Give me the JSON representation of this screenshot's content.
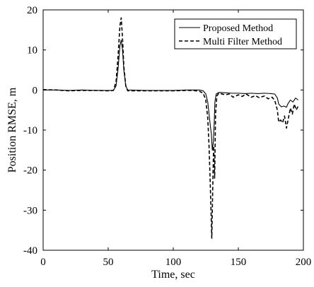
{
  "chart_data": {
    "type": "line",
    "title": "",
    "xlabel": "Time,   sec",
    "ylabel": "Position RMSE,   m",
    "xlim": [
      0,
      200
    ],
    "ylim": [
      -40,
      20
    ],
    "xticks": [
      0,
      50,
      100,
      150,
      200
    ],
    "yticks": [
      20,
      10,
      0,
      -10,
      -20,
      -30,
      -40
    ],
    "grid": false,
    "legend_position": "top-right",
    "series": [
      {
        "name": "Proposed Method",
        "color": "#000000",
        "style": "solid",
        "points": [
          [
            0,
            0
          ],
          [
            10,
            0
          ],
          [
            20,
            -0.1
          ],
          [
            30,
            0
          ],
          [
            40,
            -0.1
          ],
          [
            50,
            -0.1
          ],
          [
            54,
            -0.1
          ],
          [
            56,
            1.0
          ],
          [
            57.5,
            5.0
          ],
          [
            59,
            11.0
          ],
          [
            60,
            12.5
          ],
          [
            61,
            10.0
          ],
          [
            62,
            5.0
          ],
          [
            63.5,
            1.0
          ],
          [
            65,
            0
          ],
          [
            80,
            -0.1
          ],
          [
            100,
            -0.1
          ],
          [
            110,
            0
          ],
          [
            115,
            0
          ],
          [
            120,
            0
          ],
          [
            123,
            -0.2
          ],
          [
            125,
            -1.0
          ],
          [
            126.5,
            -3.0
          ],
          [
            127.5,
            -6.0
          ],
          [
            128.5,
            -9.0
          ],
          [
            129.3,
            -11.0
          ],
          [
            130,
            -15.0
          ],
          [
            130.8,
            -13.0
          ],
          [
            131.5,
            -8.0
          ],
          [
            132,
            -3.0
          ],
          [
            133,
            -1.0
          ],
          [
            135,
            -0.6
          ],
          [
            140,
            -0.7
          ],
          [
            145,
            -0.8
          ],
          [
            150,
            -0.8
          ],
          [
            155,
            -0.9
          ],
          [
            160,
            -0.8
          ],
          [
            165,
            -0.9
          ],
          [
            170,
            -0.8
          ],
          [
            175,
            -0.9
          ],
          [
            178,
            -1.0
          ],
          [
            180,
            -2.0
          ],
          [
            181,
            -3.5
          ],
          [
            183,
            -4.2
          ],
          [
            185,
            -4.0
          ],
          [
            187,
            -4.3
          ],
          [
            188,
            -3.5
          ],
          [
            190,
            -2.5
          ],
          [
            192,
            -3.0
          ],
          [
            194,
            -2.0
          ],
          [
            196,
            -2.5
          ]
        ]
      },
      {
        "name": "Multi Filter Method",
        "color": "#000000",
        "style": "dashed",
        "points": [
          [
            0,
            0.1
          ],
          [
            10,
            0
          ],
          [
            20,
            -0.2
          ],
          [
            30,
            -0.1
          ],
          [
            40,
            -0.1
          ],
          [
            50,
            -0.2
          ],
          [
            54,
            -0.1
          ],
          [
            56,
            2.0
          ],
          [
            57.5,
            8.0
          ],
          [
            59,
            16.0
          ],
          [
            60,
            18.0
          ],
          [
            61,
            13.0
          ],
          [
            62,
            6.0
          ],
          [
            63.5,
            1.0
          ],
          [
            65,
            -0.2
          ],
          [
            80,
            -0.2
          ],
          [
            100,
            -0.2
          ],
          [
            110,
            -0.1
          ],
          [
            115,
            -0.1
          ],
          [
            120,
            -0.3
          ],
          [
            123,
            -0.8
          ],
          [
            125,
            -2.5
          ],
          [
            126.5,
            -7.0
          ],
          [
            127.5,
            -14.0
          ],
          [
            128.3,
            -22.0
          ],
          [
            129,
            -30.0
          ],
          [
            129.6,
            -37.0
          ],
          [
            130.3,
            -25.0
          ],
          [
            131,
            -14.0
          ],
          [
            131.8,
            -22.0
          ],
          [
            132.5,
            -6.0
          ],
          [
            133.5,
            -1.5
          ],
          [
            135,
            -0.8
          ],
          [
            140,
            -1.2
          ],
          [
            143,
            -1.0
          ],
          [
            146,
            -1.8
          ],
          [
            150,
            -1.2
          ],
          [
            153,
            -1.6
          ],
          [
            156,
            -1.0
          ],
          [
            160,
            -1.8
          ],
          [
            163,
            -1.4
          ],
          [
            166,
            -1.9
          ],
          [
            170,
            -1.5
          ],
          [
            173,
            -2.2
          ],
          [
            176,
            -1.8
          ],
          [
            178,
            -2.6
          ],
          [
            180,
            -5.0
          ],
          [
            181,
            -8.0
          ],
          [
            182.5,
            -7.5
          ],
          [
            184,
            -8.2
          ],
          [
            185.5,
            -6.5
          ],
          [
            187,
            -9.5
          ],
          [
            188.5,
            -7.0
          ],
          [
            190,
            -4.5
          ],
          [
            191.5,
            -6.0
          ],
          [
            193,
            -3.5
          ],
          [
            194.5,
            -5.0
          ],
          [
            196,
            -4.0
          ]
        ]
      }
    ]
  }
}
